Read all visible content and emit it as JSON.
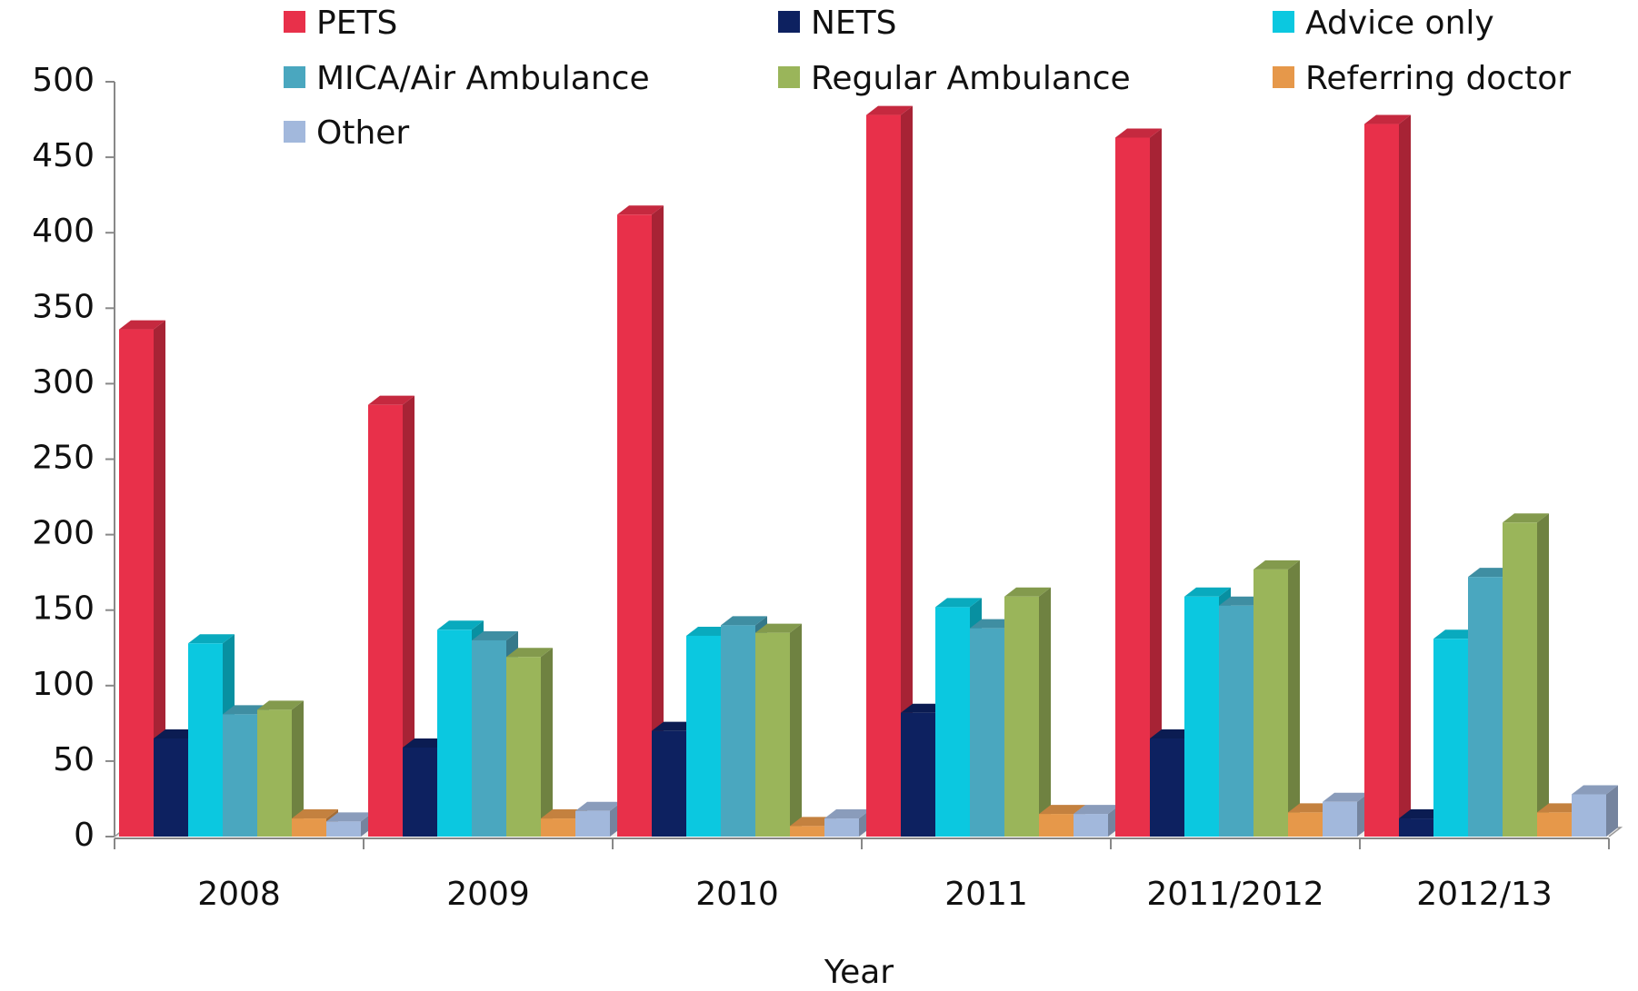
{
  "chart_data": {
    "type": "bar3d",
    "x_label": "Year",
    "categories": [
      "2008",
      "2009",
      "2010",
      "2011",
      "2011/2012",
      "2012/13"
    ],
    "series": [
      {
        "name": "PETS",
        "color": "#e8304a",
        "values": [
          336,
          286,
          412,
          478,
          463,
          472
        ]
      },
      {
        "name": "NETS",
        "color": "#0d2160",
        "values": [
          65,
          59,
          70,
          82,
          65,
          12
        ]
      },
      {
        "name": "Advice only",
        "color": "#0bc8e0",
        "values": [
          128,
          137,
          133,
          152,
          159,
          131
        ]
      },
      {
        "name": "MICA/Air Ambulance",
        "color": "#4aa7bf",
        "values": [
          81,
          130,
          140,
          138,
          153,
          172
        ]
      },
      {
        "name": "Regular Ambulance",
        "color": "#9ab55a",
        "values": [
          84,
          119,
          135,
          159,
          177,
          208
        ]
      },
      {
        "name": "Referring doctor",
        "color": "#e6984a",
        "values": [
          12,
          12,
          7,
          15,
          16,
          16
        ]
      },
      {
        "name": "Other",
        "color": "#a2b8dc",
        "values": [
          10,
          17,
          12,
          15,
          23,
          28
        ]
      }
    ],
    "ylim": [
      0,
      500
    ],
    "yticks": [
      0,
      50,
      100,
      150,
      200,
      250,
      300,
      350,
      400,
      450,
      500
    ],
    "grid": false
  }
}
